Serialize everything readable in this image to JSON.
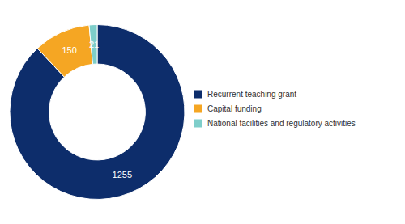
{
  "chart_data": {
    "type": "donut",
    "categories": [
      "Recurrent teaching grant",
      "Capital funding",
      "National facilities and regulatory activities"
    ],
    "values": [
      1255,
      150,
      21
    ],
    "colors": [
      "#0d2d6b",
      "#f5a623",
      "#7ececa"
    ],
    "data_labels": true,
    "legend": "right"
  }
}
